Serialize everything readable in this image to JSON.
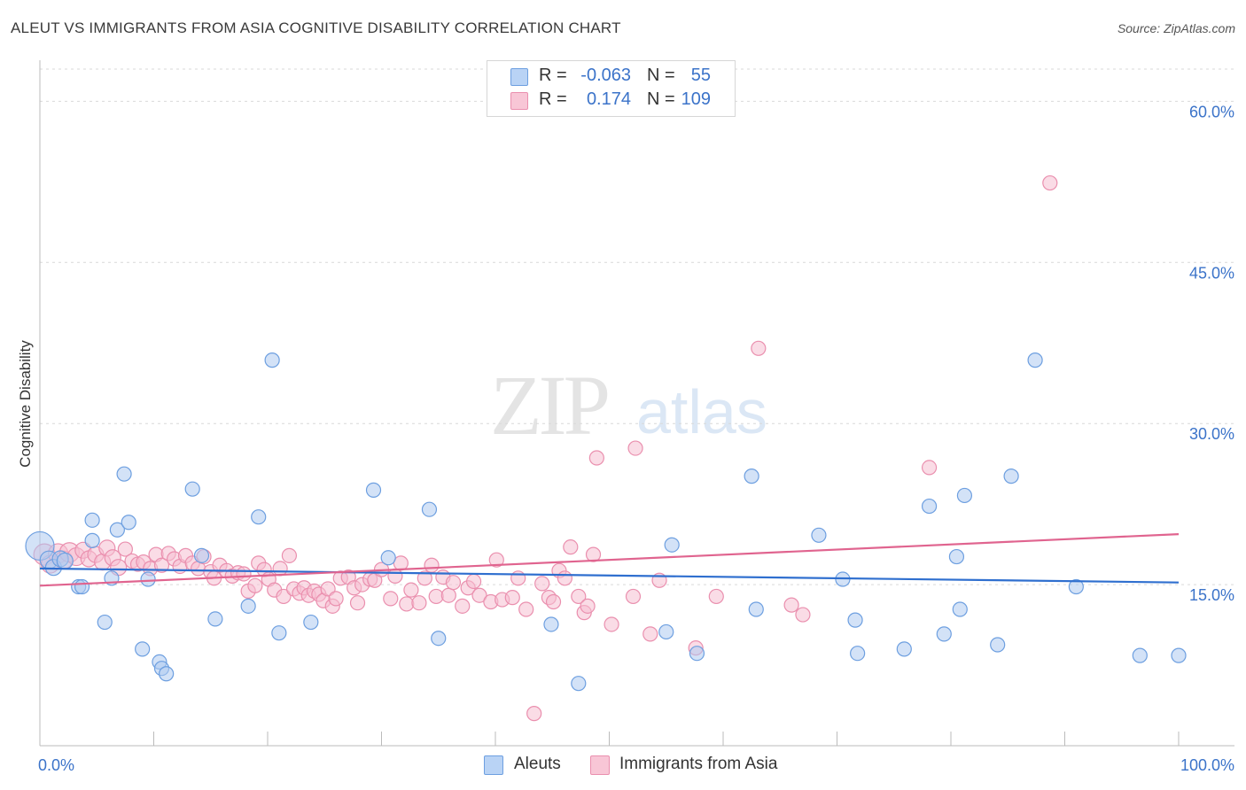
{
  "title": "ALEUT VS IMMIGRANTS FROM ASIA COGNITIVE DISABILITY CORRELATION CHART",
  "source": "Source: ZipAtlas.com",
  "watermark": {
    "zip": "ZIP",
    "atlas": "atlas"
  },
  "legend": {
    "r_label": "R =",
    "n_label": "N =",
    "rows": [
      {
        "name": "Aleuts",
        "r": "-0.063",
        "n": "55"
      },
      {
        "name": "Immigrants from Asia",
        "r": "0.174",
        "n": "109"
      }
    ]
  },
  "colors": {
    "blue_fill": "#aecbf0",
    "blue_stroke": "#6d9fe0",
    "blue_line": "#2f6fcf",
    "pink_fill": "#f6bfd1",
    "pink_stroke": "#ea8fae",
    "pink_line": "#e0648f",
    "axis_label": "#3b73c9",
    "grid": "#d9d9d9"
  },
  "chart_data": {
    "type": "scatter",
    "title": "ALEUT VS IMMIGRANTS FROM ASIA COGNITIVE DISABILITY CORRELATION CHART",
    "xlabel": "",
    "ylabel": "Cognitive Disability",
    "xlim": [
      0,
      100
    ],
    "ylim": [
      0,
      63
    ],
    "x_tick_labels": [
      "0.0%",
      "100.0%"
    ],
    "y_ticks": [
      15,
      30,
      45,
      60
    ],
    "y_tick_labels": [
      "15.0%",
      "30.0%",
      "45.0%",
      "60.0%"
    ],
    "legend_position": "top-center",
    "series": [
      {
        "name": "Aleuts",
        "r": -0.063,
        "n": 55,
        "trend": {
          "y_at_0": 16.5,
          "y_at_100": 15.2
        },
        "points": [
          [
            0.0,
            18.6,
            16
          ],
          [
            0.8,
            17.3,
            10
          ],
          [
            1.2,
            16.6,
            9
          ],
          [
            1.8,
            17.4,
            9
          ],
          [
            2.2,
            17.2,
            9
          ],
          [
            3.4,
            14.8,
            8
          ],
          [
            3.7,
            14.8,
            8
          ],
          [
            4.6,
            19.1,
            8
          ],
          [
            4.6,
            21.0,
            8
          ],
          [
            5.7,
            11.5,
            8
          ],
          [
            6.3,
            15.6,
            8
          ],
          [
            6.8,
            20.1,
            8
          ],
          [
            7.4,
            25.3,
            8
          ],
          [
            7.8,
            20.8,
            8
          ],
          [
            9.0,
            9.0,
            8
          ],
          [
            9.5,
            15.5,
            8
          ],
          [
            10.5,
            7.8,
            8
          ],
          [
            10.7,
            7.2,
            8
          ],
          [
            11.1,
            6.7,
            8
          ],
          [
            13.4,
            23.9,
            8
          ],
          [
            14.2,
            17.7,
            8
          ],
          [
            15.4,
            11.8,
            8
          ],
          [
            18.3,
            13.0,
            8
          ],
          [
            19.2,
            21.3,
            8
          ],
          [
            20.4,
            35.9,
            8
          ],
          [
            21.0,
            10.5,
            8
          ],
          [
            23.8,
            11.5,
            8
          ],
          [
            29.3,
            23.8,
            8
          ],
          [
            30.6,
            17.5,
            8
          ],
          [
            34.2,
            22.0,
            8
          ],
          [
            35.0,
            10.0,
            8
          ],
          [
            44.9,
            11.3,
            8
          ],
          [
            47.3,
            5.8,
            8
          ],
          [
            55.0,
            10.6,
            8
          ],
          [
            55.5,
            18.7,
            8
          ],
          [
            57.7,
            8.6,
            8
          ],
          [
            62.5,
            25.1,
            8
          ],
          [
            62.9,
            12.7,
            8
          ],
          [
            68.4,
            19.6,
            8
          ],
          [
            70.5,
            15.5,
            8
          ],
          [
            71.6,
            11.7,
            8
          ],
          [
            71.8,
            8.6,
            8
          ],
          [
            75.9,
            9.0,
            8
          ],
          [
            78.1,
            22.3,
            8
          ],
          [
            79.4,
            10.4,
            8
          ],
          [
            80.5,
            17.6,
            8
          ],
          [
            80.8,
            12.7,
            8
          ],
          [
            81.2,
            23.3,
            8
          ],
          [
            84.1,
            9.4,
            8
          ],
          [
            85.3,
            25.1,
            8
          ],
          [
            87.4,
            35.9,
            8
          ],
          [
            91.0,
            14.8,
            8
          ],
          [
            96.6,
            8.4,
            8
          ],
          [
            100.0,
            8.4,
            8
          ]
        ]
      },
      {
        "name": "Immigrants from Asia",
        "r": 0.174,
        "n": 109,
        "trend": {
          "y_at_0": 14.9,
          "y_at_100": 19.7
        },
        "points": [
          [
            0.4,
            17.8,
            12
          ],
          [
            0.9,
            16.9,
            10
          ],
          [
            1.6,
            17.9,
            11
          ],
          [
            2.1,
            17.3,
            10
          ],
          [
            2.6,
            18.0,
            11
          ],
          [
            3.2,
            17.6,
            10
          ],
          [
            3.8,
            18.2,
            9
          ],
          [
            4.3,
            17.4,
            9
          ],
          [
            4.9,
            17.8,
            9
          ],
          [
            5.5,
            17.1,
            9
          ],
          [
            5.9,
            18.4,
            9
          ],
          [
            6.4,
            17.5,
            9
          ],
          [
            6.9,
            16.6,
            9
          ],
          [
            7.5,
            18.3,
            8
          ],
          [
            8.1,
            17.2,
            8
          ],
          [
            8.6,
            16.9,
            8
          ],
          [
            9.1,
            17.1,
            8
          ],
          [
            9.7,
            16.5,
            8
          ],
          [
            10.2,
            17.8,
            8
          ],
          [
            10.7,
            16.8,
            8
          ],
          [
            11.3,
            17.9,
            8
          ],
          [
            11.8,
            17.4,
            8
          ],
          [
            12.3,
            16.7,
            8
          ],
          [
            12.8,
            17.7,
            8
          ],
          [
            13.4,
            17.0,
            8
          ],
          [
            13.9,
            16.5,
            8
          ],
          [
            14.4,
            17.6,
            8
          ],
          [
            15.0,
            16.2,
            8
          ],
          [
            15.3,
            15.6,
            8
          ],
          [
            15.8,
            16.8,
            8
          ],
          [
            16.4,
            16.3,
            8
          ],
          [
            16.9,
            15.8,
            8
          ],
          [
            17.4,
            16.1,
            8
          ],
          [
            17.9,
            16.0,
            8
          ],
          [
            18.3,
            14.4,
            8
          ],
          [
            18.9,
            14.9,
            8
          ],
          [
            19.2,
            17.0,
            8
          ],
          [
            19.7,
            16.4,
            8
          ],
          [
            20.1,
            15.5,
            8
          ],
          [
            20.6,
            14.5,
            8
          ],
          [
            21.1,
            16.5,
            8
          ],
          [
            21.4,
            13.9,
            8
          ],
          [
            21.9,
            17.7,
            8
          ],
          [
            22.3,
            14.6,
            8
          ],
          [
            22.8,
            14.2,
            8
          ],
          [
            23.2,
            14.7,
            8
          ],
          [
            23.6,
            14.0,
            8
          ],
          [
            24.1,
            14.4,
            8
          ],
          [
            24.5,
            14.1,
            8
          ],
          [
            24.9,
            13.5,
            8
          ],
          [
            25.3,
            14.6,
            8
          ],
          [
            25.7,
            13.0,
            8
          ],
          [
            26.0,
            13.7,
            8
          ],
          [
            26.4,
            15.6,
            8
          ],
          [
            27.1,
            15.7,
            8
          ],
          [
            27.6,
            14.7,
            8
          ],
          [
            27.9,
            13.3,
            8
          ],
          [
            28.3,
            15.0,
            8
          ],
          [
            29.0,
            15.5,
            8
          ],
          [
            29.4,
            15.4,
            8
          ],
          [
            30.0,
            16.4,
            8
          ],
          [
            30.8,
            13.7,
            8
          ],
          [
            31.2,
            15.8,
            8
          ],
          [
            31.7,
            17.0,
            8
          ],
          [
            32.2,
            13.2,
            8
          ],
          [
            32.6,
            14.5,
            8
          ],
          [
            33.3,
            13.3,
            8
          ],
          [
            33.8,
            15.6,
            8
          ],
          [
            34.4,
            16.8,
            8
          ],
          [
            34.8,
            13.9,
            8
          ],
          [
            35.4,
            15.7,
            8
          ],
          [
            35.9,
            14.0,
            8
          ],
          [
            36.3,
            15.2,
            8
          ],
          [
            37.1,
            13.0,
            8
          ],
          [
            37.6,
            14.7,
            8
          ],
          [
            38.1,
            15.3,
            8
          ],
          [
            38.6,
            14.0,
            8
          ],
          [
            39.6,
            13.4,
            8
          ],
          [
            40.1,
            17.3,
            8
          ],
          [
            40.6,
            13.6,
            8
          ],
          [
            41.5,
            13.8,
            8
          ],
          [
            42.0,
            15.6,
            8
          ],
          [
            42.7,
            12.7,
            8
          ],
          [
            43.4,
            3.0,
            8
          ],
          [
            44.1,
            15.1,
            8
          ],
          [
            44.7,
            13.8,
            8
          ],
          [
            45.1,
            13.4,
            8
          ],
          [
            45.6,
            16.3,
            8
          ],
          [
            46.1,
            15.6,
            8
          ],
          [
            46.6,
            18.5,
            8
          ],
          [
            47.3,
            13.9,
            8
          ],
          [
            47.8,
            12.4,
            8
          ],
          [
            48.1,
            13.0,
            8
          ],
          [
            48.6,
            17.8,
            8
          ],
          [
            48.9,
            26.8,
            8
          ],
          [
            50.2,
            11.3,
            8
          ],
          [
            52.1,
            13.9,
            8
          ],
          [
            52.3,
            27.7,
            8
          ],
          [
            53.6,
            10.4,
            8
          ],
          [
            54.4,
            15.4,
            8
          ],
          [
            57.6,
            9.1,
            8
          ],
          [
            59.4,
            13.9,
            8
          ],
          [
            63.1,
            37.0,
            8
          ],
          [
            66.0,
            13.1,
            8
          ],
          [
            67.0,
            12.2,
            8
          ],
          [
            78.1,
            25.9,
            8
          ],
          [
            88.7,
            52.4,
            8
          ]
        ]
      }
    ]
  }
}
